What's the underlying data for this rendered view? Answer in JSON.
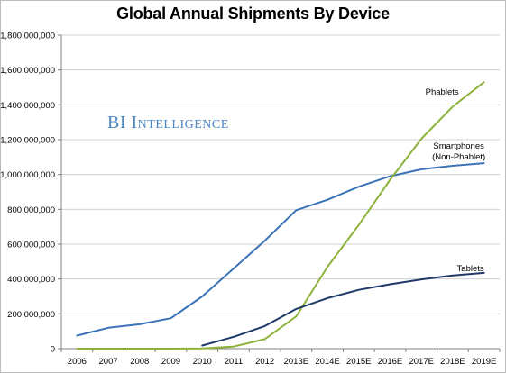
{
  "chart_data": {
    "type": "line",
    "title": "Global Annual Shipments By Device",
    "categories": [
      "2006",
      "2007",
      "2008",
      "2009",
      "2010",
      "2011",
      "2012",
      "2013E",
      "2014E",
      "2015E",
      "2016E",
      "2017E",
      "2018E",
      "2019E"
    ],
    "ylim": [
      0,
      1800000000
    ],
    "yticks": [
      0,
      200000000,
      400000000,
      600000000,
      800000000,
      1000000000,
      1200000000,
      1400000000,
      1600000000,
      1800000000
    ],
    "ytick_labels": [
      "0",
      "200,000,000",
      "400,000,000",
      "600,000,000",
      "800,000,000",
      "1,000,000,000",
      "1,200,000,000",
      "1,400,000,000",
      "1,600,000,000",
      "1,800,000,000"
    ],
    "grid": "horizontal",
    "legend": "inline labels near line ends",
    "series": [
      {
        "name": "Smartphones (Non-Phablet)",
        "label_lines": [
          "Smartphones",
          "(Non-Phablet)"
        ],
        "color": "#3b73b9",
        "values": [
          75000000,
          120000000,
          140000000,
          175000000,
          300000000,
          460000000,
          620000000,
          795000000,
          855000000,
          930000000,
          990000000,
          1030000000,
          1050000000,
          1065000000
        ]
      },
      {
        "name": "Phablets",
        "label_lines": [
          "Phablets"
        ],
        "color": "#8db33c",
        "values": [
          0,
          0,
          0,
          0,
          1000000,
          12000000,
          55000000,
          185000000,
          470000000,
          710000000,
          970000000,
          1205000000,
          1390000000,
          1530000000
        ]
      },
      {
        "name": "Tablets",
        "label_lines": [
          "Tablets"
        ],
        "color": "#1f3a68",
        "values": [
          null,
          null,
          null,
          null,
          18000000,
          68000000,
          130000000,
          228000000,
          290000000,
          338000000,
          370000000,
          398000000,
          420000000,
          435000000
        ]
      }
    ]
  },
  "watermark": {
    "text": "BI Intelligence",
    "color": "#4a86c5"
  }
}
